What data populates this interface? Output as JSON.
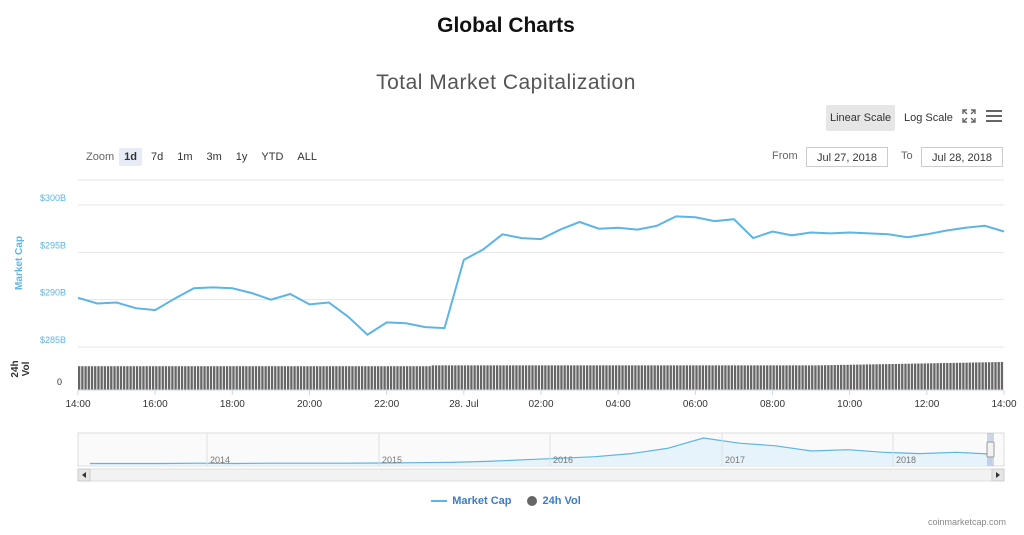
{
  "page": {
    "title": "Global Charts"
  },
  "toolbar": {
    "linear_label": "Linear Scale",
    "log_label": "Log Scale"
  },
  "zoom": {
    "label": "Zoom",
    "buttons": [
      "1d",
      "7d",
      "1m",
      "3m",
      "1y",
      "YTD",
      "ALL"
    ],
    "active": "1d"
  },
  "range": {
    "from_label": "From",
    "from_value": "Jul 27, 2018",
    "to_label": "To",
    "to_value": "Jul 28, 2018"
  },
  "credits": "coinmarketcap.com",
  "colors": {
    "line": "#5cb5e5",
    "bars": "#666666",
    "axis_label_primary": "#5cb5e5",
    "navigator_fill": "#e6f3fa"
  },
  "icons": {
    "fullscreen": "fullscreen-icon",
    "menu": "hamburger-menu-icon"
  },
  "chart_data": {
    "type": "line",
    "title": "Total Market Capitalization",
    "y_axis": {
      "label": "Market Cap",
      "ticks": [
        "$300B",
        "$295B",
        "$290B",
        "$285B"
      ],
      "range": [
        285,
        300
      ]
    },
    "volume_axis": {
      "label": "24h Vol",
      "ticks": [
        "0"
      ]
    },
    "x_ticks": [
      "14:00",
      "16:00",
      "18:00",
      "20:00",
      "22:00",
      "28. Jul",
      "02:00",
      "04:00",
      "06:00",
      "08:00",
      "10:00",
      "12:00",
      "14:00"
    ],
    "series": [
      {
        "name": "Market Cap",
        "unit": "B USD",
        "hours": [
          0,
          0.5,
          1,
          1.5,
          2,
          2.5,
          3,
          3.5,
          4,
          4.5,
          5,
          5.5,
          6,
          6.5,
          7,
          7.5,
          8,
          8.5,
          9,
          9.5,
          10,
          10.5,
          11,
          11.5,
          12,
          12.5,
          13,
          13.5,
          14,
          14.5,
          15,
          15.5,
          16,
          16.5,
          17,
          17.5,
          18,
          18.5,
          19,
          19.5,
          20,
          20.5,
          21,
          21.5,
          22,
          22.5,
          23,
          23.5,
          24
        ],
        "values": [
          290.2,
          289.6,
          289.7,
          289.1,
          288.9,
          290.1,
          291.2,
          291.3,
          291.2,
          290.7,
          290.0,
          290.6,
          289.5,
          289.7,
          288.2,
          286.3,
          287.6,
          287.5,
          287.1,
          287.0,
          294.2,
          295.3,
          296.9,
          296.5,
          296.4,
          297.4,
          298.2,
          297.5,
          297.6,
          297.4,
          297.8,
          298.8,
          298.7,
          298.3,
          298.5,
          296.5,
          297.2,
          296.8,
          297.1,
          297.0,
          297.1,
          297.0,
          296.9,
          296.6,
          296.9,
          297.3,
          297.6,
          297.8,
          297.2
        ]
      },
      {
        "name": "24h Vol",
        "start_level": 0.85,
        "end_level": 1.0
      }
    ],
    "navigator": {
      "year_labels": [
        "2014",
        "2015",
        "2016",
        "2017",
        "2018"
      ],
      "values": [
        0.02,
        0.02,
        0.02,
        0.03,
        0.02,
        0.03,
        0.03,
        0.03,
        0.04,
        0.05,
        0.06,
        0.1,
        0.16,
        0.22,
        0.28,
        0.4,
        0.6,
        1.0,
        0.8,
        0.7,
        0.5,
        0.55,
        0.45,
        0.4,
        0.45,
        0.38
      ]
    }
  }
}
